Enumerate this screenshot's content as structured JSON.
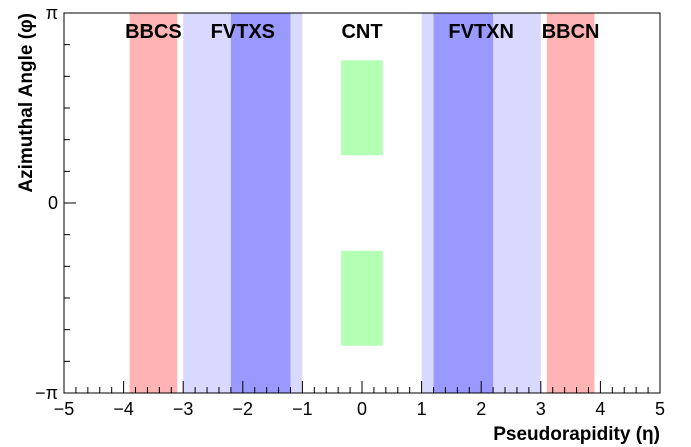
{
  "chart_data": {
    "type": "area",
    "xlabel": "Pseudorapidity (η)",
    "ylabel": "Azimuthal Angle (φ)",
    "xlim": [
      -5,
      5
    ],
    "ylim": [
      -3.14159,
      3.14159
    ],
    "x_tick_labels": [
      "−5",
      "−4",
      "−3",
      "−2",
      "−1",
      "0",
      "1",
      "2",
      "3",
      "4",
      "5"
    ],
    "y_tick_labels": [
      {
        "value": -3.14159,
        "label": "−π"
      },
      {
        "value": 0,
        "label": "0"
      },
      {
        "value": 3.14159,
        "label": "π"
      }
    ],
    "regions": [
      {
        "name": "BBCS-region",
        "eta": [
          -3.9,
          -3.1
        ],
        "phi": [
          -3.14159,
          3.14159
        ],
        "color": "#ffb3b3"
      },
      {
        "name": "FVTXS-outer-region",
        "eta": [
          -3.0,
          -1.0
        ],
        "phi": [
          -3.14159,
          3.14159
        ],
        "color": "#d9d9ff"
      },
      {
        "name": "FVTXS-inner-region",
        "eta": [
          -2.2,
          -1.2
        ],
        "phi": [
          -3.14159,
          3.14159
        ],
        "color": "#9999ff"
      },
      {
        "name": "FVTXN-outer-region",
        "eta": [
          1.0,
          3.0
        ],
        "phi": [
          -3.14159,
          3.14159
        ],
        "color": "#d9d9ff"
      },
      {
        "name": "FVTXN-inner-region",
        "eta": [
          1.2,
          2.2
        ],
        "phi": [
          -3.14159,
          3.14159
        ],
        "color": "#9999ff"
      },
      {
        "name": "BBCN-region",
        "eta": [
          3.1,
          3.9
        ],
        "phi": [
          -3.14159,
          3.14159
        ],
        "color": "#ffb3b3"
      },
      {
        "name": "CNT-upper-region",
        "eta": [
          -0.35,
          0.35
        ],
        "phi": [
          0.79,
          2.36
        ],
        "color": "#b3ffb3"
      },
      {
        "name": "CNT-lower-region",
        "eta": [
          -0.35,
          0.35
        ],
        "phi": [
          -2.36,
          -0.79
        ],
        "color": "#b3ffb3"
      }
    ],
    "labels": [
      {
        "text": "BBCS",
        "eta": -3.5
      },
      {
        "text": "FVTXS",
        "eta": -2.0
      },
      {
        "text": "CNT",
        "eta": 0.0
      },
      {
        "text": "FVTXN",
        "eta": 2.0
      },
      {
        "text": "BBCN",
        "eta": 3.5
      }
    ]
  }
}
